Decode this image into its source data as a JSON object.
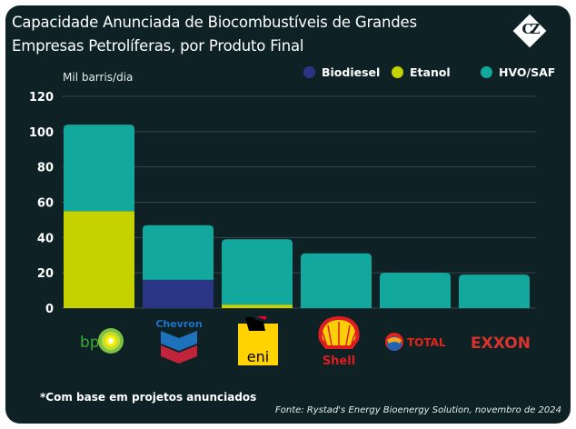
{
  "header": {
    "title": "Capacidade Anunciada de Biocombustíveis de Grandes Empresas Petrolíferas, por Produto Final",
    "logo_text": "CZ"
  },
  "colors": {
    "background": "#0e2226",
    "biodiesel": "#2b3585",
    "etanol": "#c5d200",
    "hvo_saf": "#13a89e",
    "grid": "#34484b"
  },
  "footer": {
    "footnote": "*Com base em projetos anunciados",
    "source": "Fonte: Rystad's Energy Bioenergy Solution, novembro de 2024"
  },
  "chart_data": {
    "type": "bar",
    "stacked": true,
    "title": "Capacidade Anunciada de Biocombustíveis de Grandes Empresas Petrolíferas, por Produto Final",
    "ylabel": "Mil barris/dia",
    "xlabel": "",
    "ylim": [
      0,
      120
    ],
    "yticks": [
      0,
      20,
      40,
      60,
      80,
      100,
      120
    ],
    "grid": true,
    "legend_position": "top-right",
    "categories": [
      "bp",
      "Chevron",
      "eni",
      "Shell",
      "TOTAL",
      "EXXON"
    ],
    "series": [
      {
        "name": "Biodiesel",
        "color": "#2b3585",
        "values": [
          0,
          16,
          0,
          0,
          0,
          0
        ]
      },
      {
        "name": "Etanol",
        "color": "#c5d200",
        "values": [
          55,
          0,
          2,
          0,
          0,
          0
        ]
      },
      {
        "name": "HVO/SAF",
        "color": "#13a89e",
        "values": [
          49,
          31,
          37,
          31,
          20,
          19
        ]
      }
    ]
  }
}
